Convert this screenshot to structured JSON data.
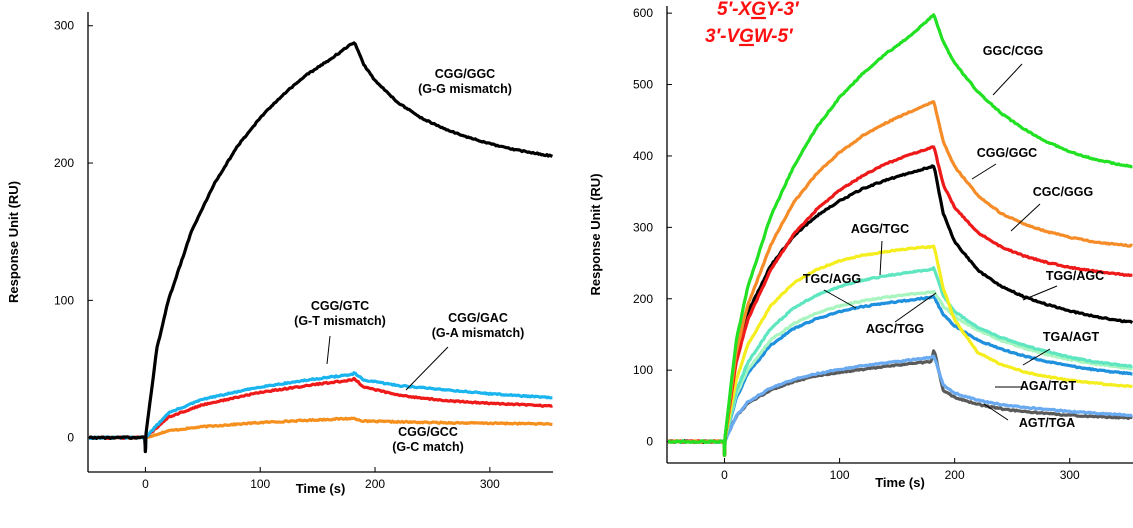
{
  "chart_data": [
    {
      "type": "line",
      "title": "",
      "xlabel": "Time (s)",
      "ylabel": "Response Unit (RU)",
      "xlim": [
        -50,
        355
      ],
      "ylim": [
        -25,
        310
      ],
      "xticks": [
        0,
        100,
        200,
        300
      ],
      "yticks": [
        0,
        100,
        200,
        300
      ],
      "grid": false,
      "legend": "none",
      "association_end_s": 182,
      "series": [
        {
          "id": "cgg-ggc",
          "color": "#000000",
          "label_lines": [
            "CGG/GGC",
            "(G-G mismatch)"
          ],
          "x": [
            0,
            10,
            20,
            40,
            60,
            80,
            100,
            120,
            140,
            160,
            180,
            182,
            190,
            200,
            220,
            240,
            260,
            280,
            300,
            320,
            340,
            355
          ],
          "y": [
            0,
            65,
            100,
            150,
            185,
            212,
            233,
            250,
            264,
            275,
            287,
            288,
            272,
            260,
            244,
            233,
            225,
            219,
            214,
            210,
            207,
            205
          ]
        },
        {
          "id": "cgg-gtc",
          "color": "#1ab4ee",
          "label_lines": [
            "CGG/GTC",
            "(G-T mismatch)"
          ],
          "x": [
            0,
            20,
            50,
            100,
            150,
            180,
            182,
            190,
            220,
            260,
            300,
            355
          ],
          "y": [
            0,
            18,
            28,
            37,
            43,
            46,
            47,
            42,
            38,
            35,
            32,
            29
          ]
        },
        {
          "id": "cgg-gac",
          "color": "#ee1a1a",
          "label_lines": [
            "CGG/GAC",
            "(G-A mismatch)"
          ],
          "x": [
            0,
            20,
            50,
            100,
            150,
            180,
            182,
            190,
            220,
            260,
            300,
            355
          ],
          "y": [
            0,
            15,
            24,
            33,
            39,
            42,
            43,
            37,
            31,
            27,
            25,
            23
          ]
        },
        {
          "id": "cgg-gcc",
          "color": "#f5901e",
          "label_lines": [
            "CGG/GCC",
            "(G-C match)"
          ],
          "x": [
            0,
            20,
            50,
            100,
            150,
            180,
            182,
            190,
            250,
            355
          ],
          "y": [
            0,
            5,
            8,
            11,
            13,
            14,
            14,
            12,
            11,
            10
          ]
        }
      ]
    },
    {
      "type": "line",
      "title": "",
      "xlabel": "Time (s)",
      "ylabel": "Response Unit (RU)",
      "xlim": [
        -50,
        355
      ],
      "ylim": [
        -30,
        610
      ],
      "xticks": [
        0,
        100,
        200,
        300
      ],
      "yticks": [
        0,
        100,
        200,
        300,
        400,
        500,
        600
      ],
      "grid": false,
      "legend": "none",
      "association_end_s": 182,
      "sequence_labels": [
        "5′-XGY-3′",
        "3′-VGW-5′"
      ],
      "series": [
        {
          "id": "ggc-cgg",
          "color": "#22e022",
          "label": "GGC/CGG",
          "x": [
            0,
            10,
            20,
            40,
            60,
            80,
            100,
            120,
            140,
            160,
            180,
            182,
            190,
            200,
            220,
            240,
            260,
            280,
            300,
            320,
            340,
            355
          ],
          "y": [
            0,
            140,
            215,
            315,
            385,
            440,
            482,
            515,
            543,
            566,
            595,
            598,
            560,
            530,
            490,
            460,
            438,
            420,
            406,
            396,
            389,
            385
          ]
        },
        {
          "id": "cgg-ggc",
          "color": "#f58c28",
          "label": "CGG/GGC",
          "x": [
            0,
            10,
            20,
            40,
            60,
            80,
            100,
            120,
            140,
            160,
            180,
            182,
            190,
            200,
            220,
            240,
            260,
            280,
            300,
            320,
            340,
            355
          ],
          "y": [
            0,
            125,
            190,
            275,
            335,
            375,
            405,
            428,
            446,
            461,
            475,
            476,
            420,
            385,
            345,
            320,
            305,
            294,
            286,
            280,
            276,
            274
          ]
        },
        {
          "id": "cgc-ggg",
          "color": "#ee1a1a",
          "label": "CGC/GGG",
          "x": [
            0,
            10,
            20,
            40,
            60,
            80,
            100,
            120,
            140,
            160,
            180,
            182,
            190,
            200,
            220,
            240,
            260,
            280,
            300,
            320,
            340,
            355
          ],
          "y": [
            0,
            110,
            170,
            240,
            290,
            325,
            352,
            372,
            389,
            401,
            412,
            413,
            360,
            328,
            293,
            273,
            260,
            251,
            244,
            239,
            235,
            232
          ]
        },
        {
          "id": "tgg-agc",
          "color": "#000000",
          "label": "TGG/AGC",
          "x": [
            0,
            10,
            20,
            40,
            60,
            80,
            100,
            120,
            140,
            160,
            180,
            182,
            190,
            200,
            220,
            240,
            260,
            280,
            300,
            320,
            340,
            355
          ],
          "y": [
            0,
            125,
            180,
            246,
            288,
            316,
            337,
            354,
            366,
            376,
            385,
            386,
            320,
            280,
            240,
            218,
            203,
            192,
            183,
            176,
            170,
            167
          ]
        },
        {
          "id": "agg-tgc",
          "color": "#f5ee1e",
          "label": "AGG/TGC",
          "x": [
            0,
            10,
            20,
            40,
            60,
            80,
            100,
            120,
            140,
            160,
            180,
            182,
            190,
            200,
            220,
            240,
            260,
            280,
            300,
            320,
            340,
            355
          ],
          "y": [
            0,
            85,
            135,
            190,
            222,
            241,
            253,
            261,
            266,
            270,
            273,
            275,
            215,
            170,
            125,
            108,
            98,
            91,
            86,
            82,
            79,
            77
          ]
        },
        {
          "id": "tgc-agg",
          "color": "#5ee6c0",
          "label": "TGC/AGG",
          "x": [
            0,
            10,
            20,
            40,
            60,
            80,
            100,
            120,
            140,
            160,
            180,
            182,
            190,
            200,
            220,
            240,
            260,
            280,
            300,
            320,
            340,
            355
          ],
          "y": [
            0,
            70,
            110,
            158,
            187,
            205,
            217,
            226,
            232,
            237,
            241,
            243,
            205,
            182,
            160,
            146,
            135,
            126,
            118,
            112,
            108,
            105
          ]
        },
        {
          "id": "aga-tgt",
          "color": "#a8f5c0",
          "label": "AGA/TGT",
          "x": [
            0,
            10,
            20,
            40,
            60,
            80,
            100,
            120,
            140,
            160,
            180,
            182,
            190,
            200,
            220,
            240,
            260,
            280,
            300,
            320,
            340,
            355
          ],
          "y": [
            0,
            65,
            100,
            142,
            165,
            180,
            190,
            197,
            202,
            206,
            209,
            210,
            190,
            175,
            156,
            142,
            131,
            122,
            115,
            109,
            105,
            102
          ]
        },
        {
          "id": "tga-agt",
          "color": "#1e90dd",
          "label": "TGA/AGT",
          "x": [
            0,
            10,
            20,
            40,
            60,
            80,
            100,
            120,
            140,
            160,
            180,
            182,
            190,
            200,
            220,
            240,
            260,
            280,
            300,
            320,
            340,
            355
          ],
          "y": [
            0,
            60,
            95,
            135,
            158,
            172,
            182,
            189,
            194,
            198,
            202,
            203,
            178,
            162,
            142,
            130,
            120,
            112,
            106,
            101,
            97,
            95
          ]
        },
        {
          "id": "agc-tgg",
          "color": "#6aaaf0",
          "label": "AGC/TGG",
          "x": [
            0,
            10,
            20,
            40,
            60,
            80,
            100,
            120,
            140,
            160,
            180,
            182,
            190,
            200,
            220,
            240,
            260,
            280,
            300,
            320,
            340,
            355
          ],
          "y": [
            0,
            35,
            55,
            75,
            87,
            95,
            101,
            106,
            110,
            114,
            118,
            120,
            80,
            68,
            58,
            52,
            48,
            45,
            42,
            40,
            38,
            37
          ]
        },
        {
          "id": "agt-tga",
          "color": "#5a5a5a",
          "label": "AGT/TGA",
          "x": [
            0,
            10,
            20,
            40,
            60,
            80,
            100,
            120,
            140,
            160,
            180,
            182,
            190,
            200,
            220,
            240,
            260,
            280,
            300,
            320,
            340,
            355
          ],
          "y": [
            0,
            35,
            53,
            72,
            84,
            92,
            97,
            101,
            105,
            109,
            112,
            130,
            72,
            62,
            52,
            46,
            42,
            39,
            37,
            35,
            34,
            33
          ]
        }
      ]
    }
  ]
}
